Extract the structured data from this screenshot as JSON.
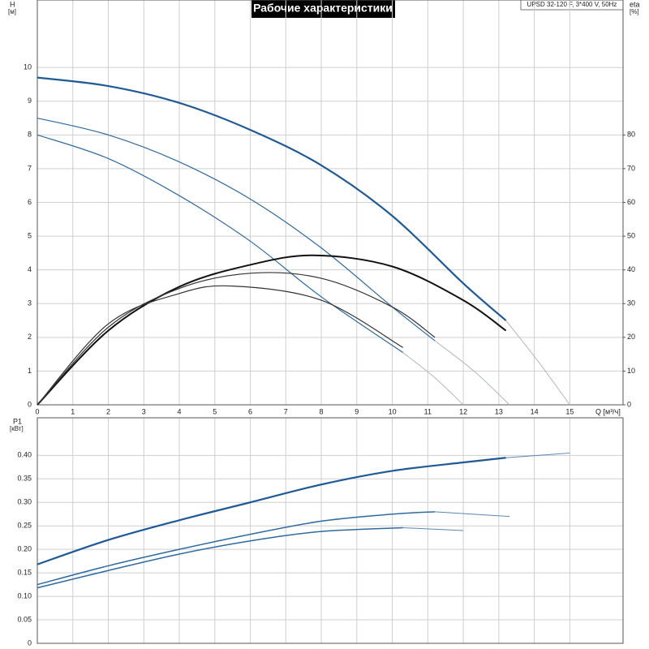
{
  "chart_data": [
    {
      "type": "line",
      "title": "Рабочие характеристики",
      "subtitle": "UPSD 32-120 F, 3*400 V, 50Hz",
      "x_label": "Q [м³/ч]",
      "y_label": "H",
      "y_unit": "[м]",
      "y2_label": "eta",
      "y2_unit": "[%]",
      "xlim": [
        0,
        16.5
      ],
      "xticks": [
        0,
        1,
        2,
        3,
        4,
        5,
        6,
        7,
        8,
        9,
        10,
        11,
        12,
        13,
        14,
        15
      ],
      "ylim": [
        0,
        12
      ],
      "yticks": [
        0,
        1,
        2,
        3,
        4,
        5,
        6,
        7,
        8,
        9,
        10
      ],
      "y2lim": [
        0,
        120
      ],
      "y2ticks": [
        0,
        10,
        20,
        30,
        40,
        50,
        60,
        70,
        80
      ],
      "grid": true,
      "series": [
        {
          "color": "#1f5a96",
          "line_width": 2.2,
          "x": [
            0,
            2,
            4,
            6,
            8,
            10,
            12,
            13.2
          ],
          "values": [
            9.7,
            9.45,
            8.95,
            8.15,
            7.1,
            5.6,
            3.6,
            2.5
          ]
        },
        {
          "color": "#b0b8c4",
          "line_width": 1,
          "x": [
            13.2,
            14.1,
            15
          ],
          "values": [
            2.5,
            1.3,
            0
          ]
        },
        {
          "color": "#2f6aa0",
          "line_width": 1.2,
          "x": [
            0,
            2,
            4,
            6,
            8,
            10,
            11.2
          ],
          "values": [
            8.5,
            8.0,
            7.2,
            6.1,
            4.65,
            2.9,
            1.9
          ]
        },
        {
          "color": "#b0b8c4",
          "line_width": 1,
          "x": [
            11.2,
            12.3,
            13.3
          ],
          "values": [
            1.9,
            1.0,
            0
          ]
        },
        {
          "color": "#2f6aa0",
          "line_width": 1.2,
          "x": [
            0,
            2,
            4,
            6,
            8,
            10.3
          ],
          "values": [
            8.0,
            7.3,
            6.2,
            4.85,
            3.2,
            1.55
          ]
        },
        {
          "color": "#b0b8c4",
          "line_width": 1,
          "x": [
            10.3,
            11.2,
            12
          ],
          "values": [
            1.55,
            0.8,
            0
          ]
        },
        {
          "color": "#111111",
          "line_width": 2,
          "axis": "y2",
          "x": [
            0,
            2,
            4,
            6,
            7.8,
            10,
            12,
            13.2
          ],
          "values": [
            0,
            22,
            35,
            41.5,
            44.3,
            41,
            31,
            22
          ]
        },
        {
          "color": "#333333",
          "line_width": 1.2,
          "axis": "y2",
          "x": [
            0,
            2,
            4,
            6,
            8,
            10,
            11.2
          ],
          "values": [
            0,
            23,
            34.5,
            39,
            37.5,
            29,
            20
          ]
        },
        {
          "color": "#333333",
          "line_width": 1.2,
          "axis": "y2",
          "x": [
            0,
            2,
            4,
            5.5,
            8,
            10.3
          ],
          "values": [
            0,
            24,
            33,
            35.2,
            31,
            17
          ]
        }
      ]
    },
    {
      "type": "line",
      "y_label": "P1",
      "y_unit": "[кВт]",
      "ylim": [
        0,
        0.48
      ],
      "yticks": [
        0,
        0.05,
        {
          "value": 0.1,
          "label": "0.10"
        },
        0.15,
        {
          "value": 0.2,
          "label": "0.20"
        },
        0.25,
        {
          "value": 0.3,
          "label": "0.30"
        },
        0.35,
        {
          "value": 0.4,
          "label": "0.40"
        }
      ],
      "grid": true,
      "series": [
        {
          "color": "#1f5a96",
          "line_width": 2.2,
          "x": [
            0,
            2,
            4,
            6,
            8,
            10,
            12,
            13.2
          ],
          "values": [
            0.168,
            0.22,
            0.262,
            0.3,
            0.338,
            0.367,
            0.385,
            0.395
          ]
        },
        {
          "color": "#5a86b4",
          "line_width": 1,
          "x": [
            13.2,
            15
          ],
          "values": [
            0.395,
            0.405
          ]
        },
        {
          "color": "#2f6aa0",
          "line_width": 1.5,
          "x": [
            0,
            2,
            4,
            6,
            8,
            10,
            11.2
          ],
          "values": [
            0.125,
            0.165,
            0.2,
            0.232,
            0.26,
            0.275,
            0.28
          ]
        },
        {
          "color": "#5a86b4",
          "line_width": 1,
          "x": [
            11.2,
            13.3
          ],
          "values": [
            0.28,
            0.27
          ]
        },
        {
          "color": "#2f6aa0",
          "line_width": 1.5,
          "x": [
            0,
            2,
            4,
            6,
            8,
            10.3
          ],
          "values": [
            0.118,
            0.155,
            0.19,
            0.218,
            0.238,
            0.246
          ]
        },
        {
          "color": "#5a86b4",
          "line_width": 1,
          "x": [
            10.3,
            12
          ],
          "values": [
            0.246,
            0.24
          ]
        }
      ]
    }
  ]
}
